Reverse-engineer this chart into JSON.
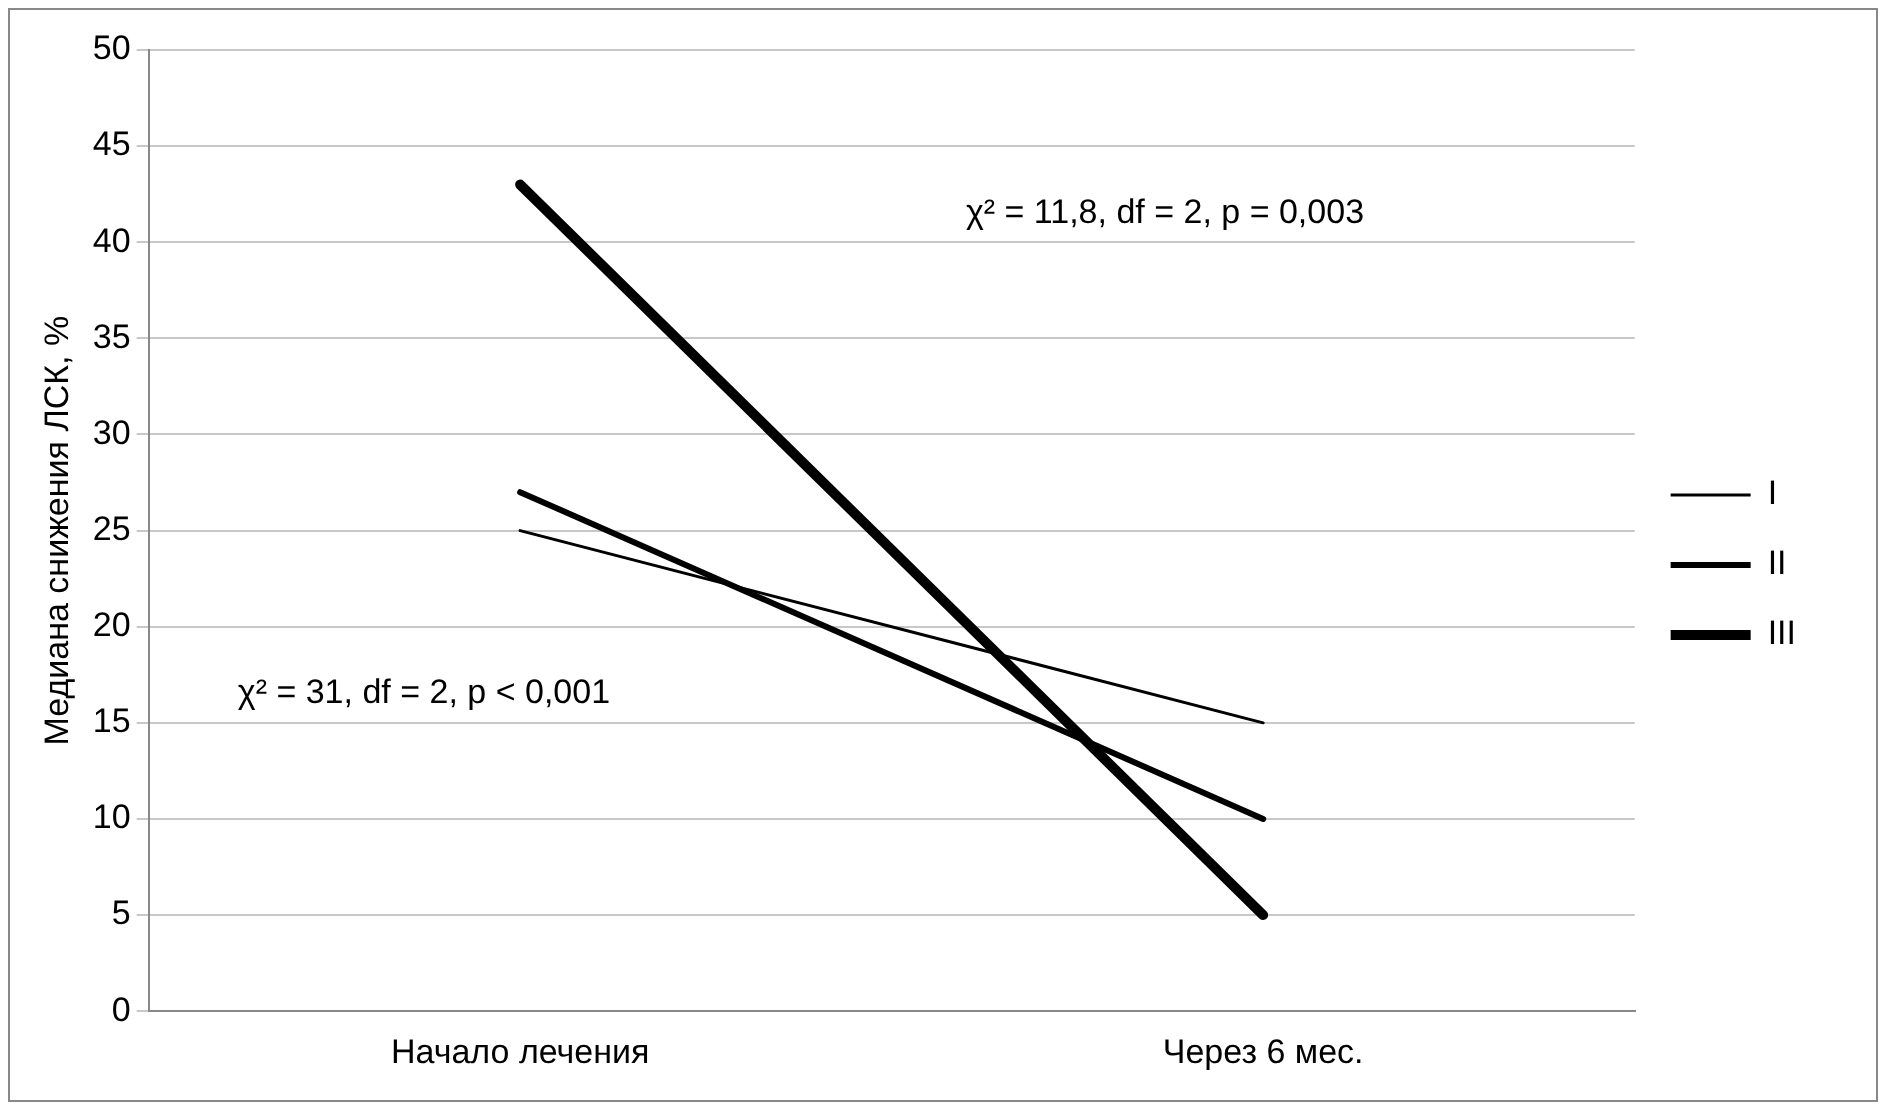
{
  "chart_data": {
    "type": "line",
    "ylabel": "Медиана снижения ЛСК, %",
    "categories": [
      "Начало лечения",
      "Через 6 мес."
    ],
    "series": [
      {
        "name": "I",
        "color": "#000000",
        "values": [
          25,
          15
        ]
      },
      {
        "name": "II",
        "color": "#000000",
        "values": [
          27,
          10
        ]
      },
      {
        "name": "III",
        "color": "#000000",
        "values": [
          43,
          5
        ]
      }
    ],
    "ylim": [
      0,
      50
    ],
    "yticks": [
      0,
      5,
      10,
      15,
      20,
      25,
      30,
      35,
      40,
      45,
      50
    ],
    "grid": "y",
    "legend": "right",
    "marker": "none",
    "line_style": "solid",
    "annotations": [
      "χ² = 31, df = 2, p < 0,001",
      "χ² = 11,8, df = 2, p = 0,003"
    ]
  }
}
